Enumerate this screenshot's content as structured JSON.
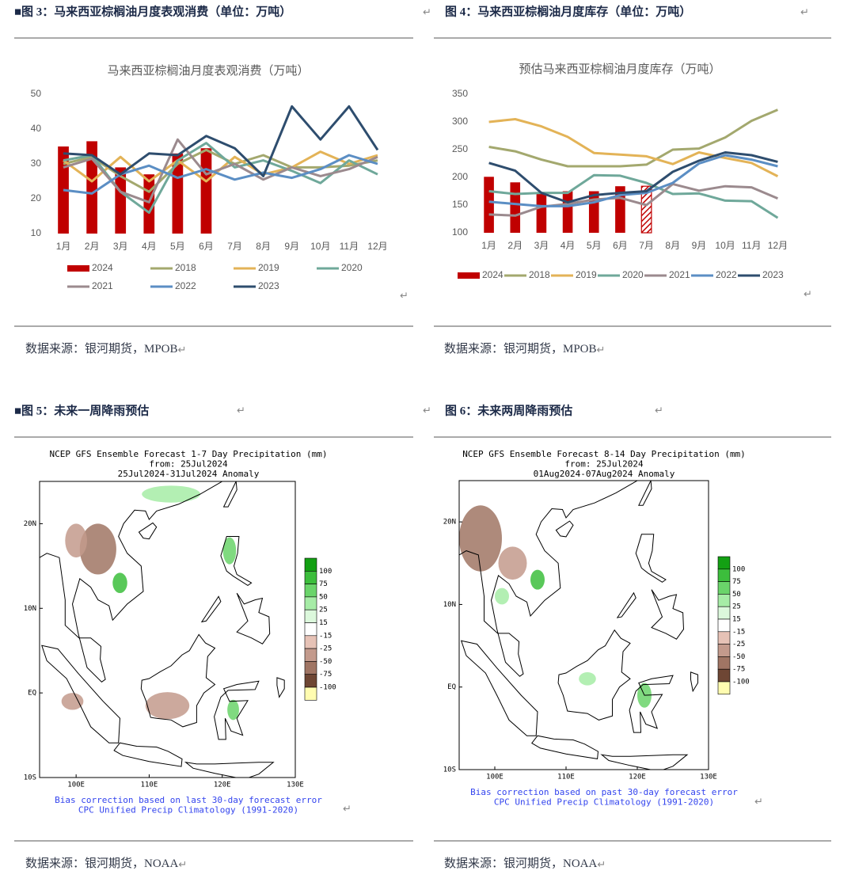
{
  "document": {
    "paragraph_mark": "↵",
    "figures": [
      {
        "caption": "■图 3：马来西亚棕榈油月度表观消费（单位：万吨）",
        "source": "数据来源：银河期货，MPOB"
      },
      {
        "caption": "图 4：马来西亚棕榈油月度库存（单位：万吨）",
        "source": "数据来源：银河期货，MPOB"
      },
      {
        "caption": "■图 5：未来一周降雨预估",
        "source": "数据来源：银河期货，NOAA"
      },
      {
        "caption": "图 6：未来两周降雨预估",
        "source": "数据来源：银河期货，NOAA"
      }
    ]
  },
  "chart_data": [
    {
      "type": "bar-line",
      "title": "马来西亚棕榈油月度表观消费（万吨）",
      "categories": [
        "1月",
        "2月",
        "3月",
        "4月",
        "5月",
        "6月",
        "7月",
        "8月",
        "9月",
        "10月",
        "11月",
        "12月"
      ],
      "ylim": [
        10,
        50
      ],
      "yticks": [
        10,
        20,
        30,
        40,
        50
      ],
      "grid": false,
      "series": [
        {
          "name": "2024",
          "kind": "bar",
          "color": "#c00000",
          "values": [
            35,
            36.5,
            29,
            27,
            33,
            34.5,
            null,
            null,
            null,
            null,
            null,
            null
          ]
        },
        {
          "name": "2018",
          "kind": "line",
          "color": "#a3a86e",
          "values": [
            30,
            32,
            26.5,
            22,
            30,
            34,
            30,
            32.5,
            29,
            29,
            29.5,
            31
          ]
        },
        {
          "name": "2019",
          "kind": "line",
          "color": "#e3b357",
          "values": [
            31,
            25,
            32,
            25,
            31,
            25,
            32,
            27,
            29,
            33.5,
            30,
            32.5
          ]
        },
        {
          "name": "2020",
          "kind": "line",
          "color": "#6fa89a",
          "values": [
            31,
            32.5,
            22,
            16,
            31,
            36,
            29,
            31,
            28,
            24.5,
            31,
            27
          ]
        },
        {
          "name": "2021",
          "kind": "line",
          "color": "#9b8a8e",
          "values": [
            29,
            31.5,
            22,
            19,
            37,
            27,
            30,
            25.5,
            29,
            26.5,
            28.5,
            32
          ]
        },
        {
          "name": "2022",
          "kind": "line",
          "color": "#5b8ec4",
          "values": [
            22.5,
            21.5,
            27,
            29.5,
            26,
            28.5,
            25.5,
            27.5,
            26,
            28.5,
            32.5,
            30
          ]
        },
        {
          "name": "2023",
          "kind": "line",
          "color": "#2e4d6e",
          "values": [
            33,
            32.5,
            27,
            33,
            32.5,
            38,
            34.5,
            26.5,
            46.5,
            37,
            46.5,
            34
          ]
        }
      ]
    },
    {
      "type": "bar-line",
      "title": "预估马来西亚棕榈油月度库存（万吨）",
      "categories": [
        "1月",
        "2月",
        "3月",
        "4月",
        "5月",
        "6月",
        "7月",
        "8月",
        "9月",
        "10月",
        "11月",
        "12月"
      ],
      "ylim": [
        100,
        350
      ],
      "yticks": [
        100,
        150,
        200,
        250,
        300,
        350
      ],
      "grid": false,
      "series": [
        {
          "name": "2024",
          "kind": "bar",
          "color": "#c00000",
          "fills": [
            "solid",
            "solid",
            "solid",
            "solid",
            "solid",
            "solid",
            "hatch"
          ],
          "values": [
            201,
            191,
            172,
            175,
            175,
            184,
            184,
            null,
            null,
            null,
            null,
            null
          ]
        },
        {
          "name": "2018",
          "kind": "line",
          "color": "#a3a86e",
          "values": [
            255,
            247,
            232,
            220,
            220,
            220,
            223,
            250,
            252,
            272,
            302,
            322
          ]
        },
        {
          "name": "2019",
          "kind": "line",
          "color": "#e3b357",
          "values": [
            300,
            305,
            292,
            273,
            244,
            241,
            238,
            224,
            245,
            235,
            226,
            202
          ]
        },
        {
          "name": "2020",
          "kind": "line",
          "color": "#6fa89a",
          "values": [
            175,
            170,
            172,
            172,
            204,
            203,
            190,
            170,
            171,
            158,
            157,
            127
          ]
        },
        {
          "name": "2021",
          "kind": "line",
          "color": "#9b8a8e",
          "values": [
            133,
            131,
            147,
            152,
            160,
            163,
            150,
            188,
            176,
            184,
            182,
            162
          ]
        },
        {
          "name": "2022",
          "kind": "line",
          "color": "#5b8ec4",
          "values": [
            156,
            152,
            148,
            148,
            155,
            168,
            172,
            190,
            225,
            240,
            232,
            220
          ]
        },
        {
          "name": "2023",
          "kind": "line",
          "color": "#2e4d6e",
          "values": [
            226,
            212,
            172,
            155,
            168,
            172,
            175,
            210,
            230,
            245,
            240,
            228
          ]
        }
      ]
    }
  ],
  "maps": [
    {
      "title_lines": [
        "NCEP GFS Ensemble Forecast 1-7 Day Precipitation (mm)",
        "from: 25Jul2024",
        "25Jul2024-31Jul2024 Anomaly"
      ],
      "lon_range": [
        95,
        130
      ],
      "lat_range": [
        -10,
        25
      ],
      "lon_ticks": [
        {
          "value": 100,
          "label": "100E"
        },
        {
          "value": 110,
          "label": "110E"
        },
        {
          "value": 120,
          "label": "120E"
        },
        {
          "value": 130,
          "label": "130E"
        }
      ],
      "lat_ticks": [
        {
          "value": 20,
          "label": "20N"
        },
        {
          "value": 10,
          "label": "10N"
        },
        {
          "value": 0,
          "label": "EQ"
        },
        {
          "value": -10,
          "label": "10S"
        }
      ],
      "legend_labels": [
        "100",
        "75",
        "50",
        "25",
        "15",
        "-15",
        "-25",
        "-50",
        "-75",
        "-100"
      ],
      "legend_colors": [
        "#13a013",
        "#3cbe3c",
        "#6ad46a",
        "#a6eca6",
        "#dcf8dc",
        "#ffffff",
        "#e6c2b6",
        "#c39a8c",
        "#a07564",
        "#6e4634",
        "#fffcb0"
      ],
      "footer_lines": [
        "Bias correction based on last 30-day forecast error",
        "CPC Unified Precip Climatology (1991-2020)"
      ]
    },
    {
      "title_lines": [
        "NCEP GFS Ensemble Forecast 8-14 Day Precipitation (mm)",
        "from: 25Jul2024",
        "01Aug2024-07Aug2024 Anomaly"
      ],
      "lon_range": [
        95,
        130
      ],
      "lat_range": [
        -10,
        25
      ],
      "lon_ticks": [
        {
          "value": 100,
          "label": "100E"
        },
        {
          "value": 110,
          "label": "110E"
        },
        {
          "value": 120,
          "label": "120E"
        },
        {
          "value": 130,
          "label": "130E"
        }
      ],
      "lat_ticks": [
        {
          "value": 20,
          "label": "20N"
        },
        {
          "value": 10,
          "label": "10N"
        },
        {
          "value": 0,
          "label": "EQ"
        },
        {
          "value": -10,
          "label": "10S"
        }
      ],
      "legend_labels": [
        "100",
        "75",
        "50",
        "25",
        "15",
        "-15",
        "-25",
        "-50",
        "-75",
        "-100"
      ],
      "legend_colors": [
        "#13a013",
        "#3cbe3c",
        "#6ad46a",
        "#a6eca6",
        "#dcf8dc",
        "#ffffff",
        "#e6c2b6",
        "#c39a8c",
        "#a07564",
        "#6e4634",
        "#fffcb0"
      ],
      "footer_lines": [
        "Bias correction based on past 30-day forecast error",
        "CPC Unified Precip Climatology (1991-2020)"
      ]
    }
  ]
}
